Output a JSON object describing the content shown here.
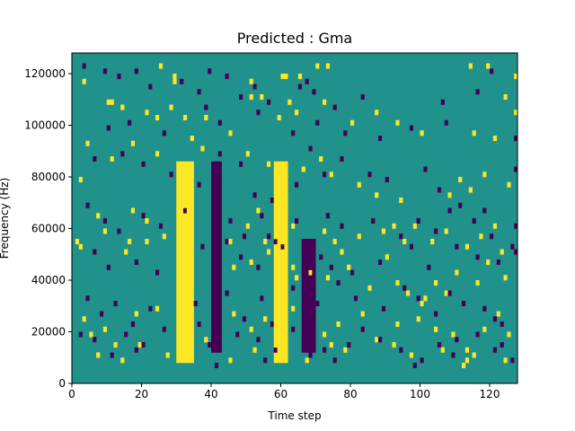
{
  "chart_data": {
    "type": "heatmap",
    "title": "Predicted : Gma",
    "xlabel": "Time step",
    "ylabel": "Frequency (Hz)",
    "xlim": [
      0,
      128
    ],
    "ylim": [
      0,
      128000
    ],
    "xticks": [
      0,
      20,
      40,
      60,
      80,
      100,
      120
    ],
    "yticks": [
      0,
      20000,
      40000,
      60000,
      80000,
      100000,
      120000
    ],
    "xtick_labels": [
      "0",
      "20",
      "40",
      "60",
      "80",
      "100",
      "120"
    ],
    "ytick_labels": [
      "0",
      "20000",
      "40000",
      "60000",
      "80000",
      "100000",
      "120000"
    ],
    "grid": false,
    "colormap": "viridis",
    "colors": {
      "background": "#21918c",
      "high": "#fde725",
      "low": "#440154"
    },
    "num_time_steps": 128,
    "num_freq_bins": 64,
    "bin_height_hz": 2000,
    "background_value": 0,
    "high_value": 1,
    "low_value": -1,
    "bands": [
      {
        "value": 1,
        "x_start": 30,
        "x_end": 35,
        "y_start": 8000,
        "y_end": 86000
      },
      {
        "value": -1,
        "x_start": 40,
        "x_end": 43,
        "y_start": 12000,
        "y_end": 86000
      },
      {
        "value": 1,
        "x_start": 58,
        "x_end": 62,
        "y_start": 8000,
        "y_end": 86000
      },
      {
        "value": -1,
        "x_start": 66,
        "x_end": 70,
        "y_start": 12000,
        "y_end": 56000
      }
    ],
    "cells_high": [
      [
        25,
        122000
      ],
      [
        29,
        118000
      ],
      [
        29,
        116000
      ],
      [
        51,
        116000
      ],
      [
        60,
        118000
      ],
      [
        61,
        118000
      ],
      [
        65,
        118000
      ],
      [
        70,
        122000
      ],
      [
        73,
        122000
      ],
      [
        114,
        122000
      ],
      [
        119,
        122000
      ],
      [
        127,
        118000
      ],
      [
        3,
        116000
      ],
      [
        10,
        108000
      ],
      [
        11,
        108000
      ],
      [
        14,
        106000
      ],
      [
        21,
        104000
      ],
      [
        24,
        102000
      ],
      [
        28,
        106000
      ],
      [
        32,
        102000
      ],
      [
        34,
        94000
      ],
      [
        38,
        102000
      ],
      [
        45,
        96000
      ],
      [
        51,
        110000
      ],
      [
        54,
        110000
      ],
      [
        59,
        102000
      ],
      [
        62,
        108000
      ],
      [
        64,
        104000
      ],
      [
        72,
        108000
      ],
      [
        80,
        100000
      ],
      [
        87,
        104000
      ],
      [
        93,
        100000
      ],
      [
        100,
        96000
      ],
      [
        115,
        96000
      ],
      [
        121,
        94000
      ],
      [
        124,
        110000
      ],
      [
        127,
        104000
      ],
      [
        4,
        92000
      ],
      [
        11,
        86000
      ],
      [
        17,
        92000
      ],
      [
        24,
        88000
      ],
      [
        32,
        82000
      ],
      [
        37,
        90000
      ],
      [
        50,
        88000
      ],
      [
        56,
        84000
      ],
      [
        66,
        82000
      ],
      [
        71,
        86000
      ],
      [
        74,
        80000
      ],
      [
        82,
        76000
      ],
      [
        87,
        72000
      ],
      [
        94,
        70000
      ],
      [
        108,
        72000
      ],
      [
        111,
        78000
      ],
      [
        114,
        74000
      ],
      [
        118,
        80000
      ],
      [
        125,
        76000
      ],
      [
        2,
        78000
      ],
      [
        7,
        64000
      ],
      [
        9,
        58000
      ],
      [
        16,
        54000
      ],
      [
        17,
        66000
      ],
      [
        21,
        62000
      ],
      [
        26,
        56000
      ],
      [
        45,
        54000
      ],
      [
        50,
        60000
      ],
      [
        53,
        66000
      ],
      [
        55,
        54000
      ],
      [
        63,
        60000
      ],
      [
        72,
        58000
      ],
      [
        75,
        54000
      ],
      [
        77,
        50000
      ],
      [
        82,
        56000
      ],
      [
        89,
        58000
      ],
      [
        92,
        60000
      ],
      [
        95,
        54000
      ],
      [
        98,
        60000
      ],
      [
        103,
        54000
      ],
      [
        107,
        58000
      ],
      [
        113,
        52000
      ],
      [
        117,
        56000
      ],
      [
        121,
        60000
      ],
      [
        123,
        50000
      ],
      [
        1,
        54000
      ],
      [
        2,
        52000
      ],
      [
        15,
        50000
      ],
      [
        21,
        54000
      ],
      [
        34,
        48000
      ],
      [
        46,
        44000
      ],
      [
        51,
        46000
      ],
      [
        56,
        50000
      ],
      [
        63,
        44000
      ],
      [
        64,
        40000
      ],
      [
        68,
        42000
      ],
      [
        73,
        40000
      ],
      [
        79,
        44000
      ],
      [
        85,
        36000
      ],
      [
        90,
        48000
      ],
      [
        93,
        38000
      ],
      [
        96,
        34000
      ],
      [
        100,
        30000
      ],
      [
        101,
        32000
      ],
      [
        104,
        38000
      ],
      [
        107,
        34000
      ],
      [
        110,
        42000
      ],
      [
        116,
        38000
      ],
      [
        119,
        46000
      ],
      [
        124,
        40000
      ],
      [
        3,
        24000
      ],
      [
        5,
        18000
      ],
      [
        9,
        20000
      ],
      [
        12,
        14000
      ],
      [
        18,
        26000
      ],
      [
        24,
        28000
      ],
      [
        30,
        22000
      ],
      [
        38,
        16000
      ],
      [
        46,
        26000
      ],
      [
        51,
        20000
      ],
      [
        55,
        24000
      ],
      [
        63,
        28000
      ],
      [
        72,
        18000
      ],
      [
        76,
        22000
      ],
      [
        83,
        26000
      ],
      [
        87,
        16000
      ],
      [
        93,
        22000
      ],
      [
        99,
        24000
      ],
      [
        104,
        20000
      ],
      [
        109,
        18000
      ],
      [
        113,
        8000
      ],
      [
        113,
        12000
      ],
      [
        118,
        20000
      ],
      [
        122,
        26000
      ],
      [
        125,
        18000
      ],
      [
        7,
        10000
      ],
      [
        14,
        8000
      ],
      [
        19,
        14000
      ],
      [
        27,
        10000
      ],
      [
        33,
        12000
      ],
      [
        45,
        8000
      ],
      [
        52,
        12000
      ],
      [
        59,
        10000
      ],
      [
        67,
        8000
      ],
      [
        74,
        14000
      ],
      [
        78,
        12000
      ],
      [
        92,
        14000
      ],
      [
        97,
        10000
      ],
      [
        106,
        12000
      ],
      [
        112,
        6000
      ],
      [
        115,
        10000
      ],
      [
        124,
        8000
      ]
    ],
    "cells_low": [
      [
        3,
        122000
      ],
      [
        9,
        120000
      ],
      [
        13,
        118000
      ],
      [
        18,
        120000
      ],
      [
        22,
        114000
      ],
      [
        31,
        116000
      ],
      [
        36,
        112000
      ],
      [
        39,
        120000
      ],
      [
        44,
        118000
      ],
      [
        48,
        110000
      ],
      [
        52,
        114000
      ],
      [
        56,
        108000
      ],
      [
        65,
        114000
      ],
      [
        67,
        116000
      ],
      [
        69,
        112000
      ],
      [
        75,
        106000
      ],
      [
        83,
        110000
      ],
      [
        106,
        108000
      ],
      [
        116,
        112000
      ],
      [
        120,
        120000
      ],
      [
        10,
        98000
      ],
      [
        16,
        100000
      ],
      [
        26,
        96000
      ],
      [
        38,
        106000
      ],
      [
        42,
        100000
      ],
      [
        53,
        104000
      ],
      [
        63,
        96000
      ],
      [
        70,
        100000
      ],
      [
        78,
        96000
      ],
      [
        88,
        94000
      ],
      [
        97,
        98000
      ],
      [
        107,
        100000
      ],
      [
        127,
        94000
      ],
      [
        6,
        86000
      ],
      [
        14,
        88000
      ],
      [
        20,
        84000
      ],
      [
        28,
        80000
      ],
      [
        36,
        76000
      ],
      [
        42,
        88000
      ],
      [
        48,
        84000
      ],
      [
        52,
        72000
      ],
      [
        57,
        70000
      ],
      [
        64,
        76000
      ],
      [
        68,
        90000
      ],
      [
        72,
        80000
      ],
      [
        77,
        86000
      ],
      [
        85,
        80000
      ],
      [
        90,
        78000
      ],
      [
        101,
        82000
      ],
      [
        105,
        74000
      ],
      [
        111,
        68000
      ],
      [
        118,
        66000
      ],
      [
        127,
        82000
      ],
      [
        4,
        68000
      ],
      [
        9,
        62000
      ],
      [
        13,
        58000
      ],
      [
        20,
        64000
      ],
      [
        25,
        60000
      ],
      [
        32,
        66000
      ],
      [
        45,
        62000
      ],
      [
        49,
        56000
      ],
      [
        54,
        64000
      ],
      [
        58,
        54000
      ],
      [
        64,
        62000
      ],
      [
        73,
        64000
      ],
      [
        77,
        60000
      ],
      [
        86,
        62000
      ],
      [
        94,
        56000
      ],
      [
        99,
        62000
      ],
      [
        104,
        58000
      ],
      [
        108,
        66000
      ],
      [
        115,
        62000
      ],
      [
        120,
        56000
      ],
      [
        127,
        60000
      ],
      [
        6,
        50000
      ],
      [
        10,
        44000
      ],
      [
        18,
        46000
      ],
      [
        24,
        42000
      ],
      [
        37,
        52000
      ],
      [
        44,
        54000
      ],
      [
        48,
        48000
      ],
      [
        53,
        44000
      ],
      [
        56,
        56000
      ],
      [
        60,
        52000
      ],
      [
        71,
        48000
      ],
      [
        74,
        44000
      ],
      [
        80,
        42000
      ],
      [
        88,
        46000
      ],
      [
        97,
        52000
      ],
      [
        102,
        44000
      ],
      [
        110,
        52000
      ],
      [
        116,
        48000
      ],
      [
        122,
        46000
      ],
      [
        126,
        52000
      ],
      [
        127,
        50000
      ],
      [
        4,
        32000
      ],
      [
        8,
        26000
      ],
      [
        12,
        30000
      ],
      [
        17,
        22000
      ],
      [
        22,
        28000
      ],
      [
        35,
        30000
      ],
      [
        44,
        34000
      ],
      [
        49,
        24000
      ],
      [
        54,
        32000
      ],
      [
        57,
        22000
      ],
      [
        63,
        36000
      ],
      [
        70,
        30000
      ],
      [
        76,
        38000
      ],
      [
        81,
        32000
      ],
      [
        89,
        28000
      ],
      [
        95,
        36000
      ],
      [
        99,
        32000
      ],
      [
        104,
        26000
      ],
      [
        108,
        34000
      ],
      [
        112,
        30000
      ],
      [
        118,
        28000
      ],
      [
        121,
        24000
      ],
      [
        123,
        22000
      ],
      [
        2,
        18000
      ],
      [
        6,
        16000
      ],
      [
        11,
        10000
      ],
      [
        15,
        18000
      ],
      [
        20,
        14000
      ],
      [
        26,
        20000
      ],
      [
        36,
        22000
      ],
      [
        39,
        14000
      ],
      [
        47,
        18000
      ],
      [
        53,
        16000
      ],
      [
        58,
        12000
      ],
      [
        63,
        20000
      ],
      [
        68,
        10000
      ],
      [
        72,
        12000
      ],
      [
        79,
        14000
      ],
      [
        83,
        20000
      ],
      [
        88,
        16000
      ],
      [
        94,
        12000
      ],
      [
        100,
        8000
      ],
      [
        105,
        14000
      ],
      [
        110,
        16000
      ],
      [
        116,
        18000
      ],
      [
        121,
        12000
      ],
      [
        123,
        14000
      ],
      [
        126,
        8000
      ],
      [
        18,
        12000
      ],
      [
        41,
        6000
      ],
      [
        55,
        8000
      ],
      [
        75,
        8000
      ],
      [
        98,
        6000
      ],
      [
        109,
        10000
      ]
    ]
  }
}
